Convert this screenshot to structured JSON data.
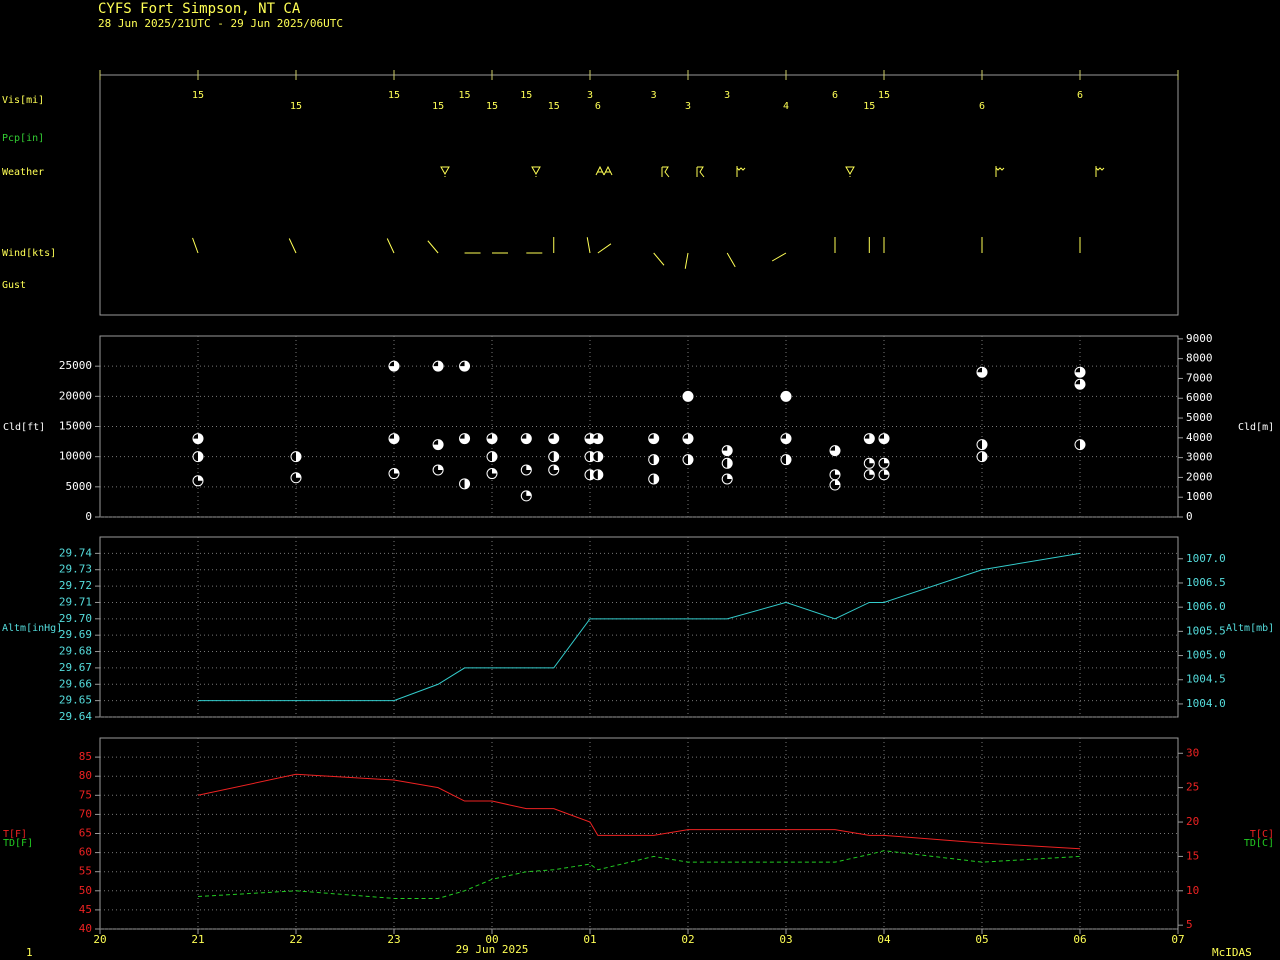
{
  "header": {
    "title": "CYFS  Fort Simpson, NT CA",
    "subtitle": "28 Jun 2025/21UTC - 29 Jun 2025/06UTC",
    "page_number": "1",
    "software": "McIDAS"
  },
  "chart_data": [
    {
      "type": "station",
      "row_labels": [
        "Vis[mi]",
        "Pcp[in]",
        "Weather",
        "Wind[kts]",
        "Gust"
      ],
      "x": [
        1,
        2,
        3,
        3.45,
        3.72,
        4,
        4.35,
        4.63,
        5,
        5.08,
        5.65,
        6,
        6.4,
        7,
        7.5,
        7.85,
        8,
        9,
        10
      ],
      "visibility": [
        15,
        15,
        15,
        15,
        15,
        15,
        15,
        15,
        3,
        6,
        3,
        3,
        3,
        4,
        6,
        15,
        15,
        6,
        6
      ],
      "wind_dir": [
        340,
        335,
        335,
        320,
        90,
        90,
        90,
        360,
        350,
        55,
        140,
        190,
        150,
        240,
        360,
        360,
        360,
        360,
        360
      ],
      "color": "#ffff55"
    },
    {
      "type": "scatter",
      "ylabel": "Cld[ft]",
      "y2label": "Cld[m]",
      "x": [
        1,
        1,
        1,
        2,
        2,
        3,
        3,
        3,
        3.45,
        3.45,
        3.45,
        3.72,
        3.72,
        3.72,
        4,
        4,
        4,
        4.35,
        4.35,
        4.35,
        4.63,
        4.63,
        4.63,
        5,
        5,
        5,
        5.08,
        5.08,
        5.08,
        5.65,
        5.65,
        5.65,
        6,
        6,
        6,
        6.4,
        6.4,
        6.4,
        7,
        7,
        7,
        7.5,
        7.5,
        7.5,
        7.85,
        7.85,
        7.85,
        8,
        8,
        8,
        9,
        9,
        9,
        10,
        10,
        10
      ],
      "height_ft": [
        13000,
        10000,
        6000,
        10000,
        6500,
        25000,
        13000,
        7200,
        25000,
        12000,
        7800,
        25000,
        13000,
        5500,
        13000,
        10000,
        7200,
        13000,
        7800,
        3500,
        13000,
        10000,
        7800,
        13000,
        10000,
        7000,
        13000,
        10000,
        7000,
        13000,
        9500,
        6300,
        20000,
        13000,
        9500,
        11000,
        8900,
        6300,
        20000,
        13000,
        9500,
        11000,
        7000,
        5300,
        13000,
        8900,
        7000,
        13000,
        8900,
        7000,
        24000,
        12000,
        10000,
        24000,
        22000,
        12000
      ],
      "cover": [
        0.75,
        0.5,
        0.25,
        0.5,
        0.25,
        0.75,
        0.75,
        0.25,
        0.75,
        0.75,
        0.25,
        0.75,
        0.75,
        0.5,
        0.75,
        0.5,
        0.25,
        0.75,
        0.25,
        0.25,
        0.75,
        0.5,
        0.25,
        0.75,
        0.5,
        0.5,
        0.75,
        0.5,
        0.5,
        0.75,
        0.5,
        0.5,
        1,
        0.75,
        0.5,
        0.75,
        0.5,
        0.25,
        1,
        0.75,
        0.5,
        0.75,
        0.25,
        0.25,
        0.75,
        0.25,
        0.25,
        0.75,
        0.25,
        0.25,
        0.75,
        0.5,
        0.5,
        0.75,
        0.75,
        0.5
      ],
      "ylim": [
        0,
        30000
      ],
      "yticks": [
        0,
        5000,
        10000,
        15000,
        20000,
        25000
      ],
      "y2lim": [
        0,
        9144
      ],
      "y2ticks": [
        0,
        1000,
        2000,
        3000,
        4000,
        5000,
        6000,
        7000,
        8000,
        9000
      ],
      "color": "#ffffff",
      "grid": true
    },
    {
      "type": "line",
      "ylabel": "Altm[inHg]",
      "y2label": "Altm[mb]",
      "x": [
        1,
        2,
        3,
        3.45,
        3.72,
        4,
        4.35,
        4.63,
        5,
        5.08,
        5.65,
        6,
        6.4,
        7,
        7.5,
        7.85,
        8,
        9,
        10
      ],
      "series": [
        {
          "color": "#33cccc",
          "values": [
            29.65,
            29.65,
            29.65,
            29.66,
            29.67,
            29.67,
            29.67,
            29.67,
            29.7,
            29.7,
            29.7,
            29.7,
            29.7,
            29.71,
            29.7,
            29.71,
            29.71,
            29.73,
            29.74
          ]
        }
      ],
      "ylim": [
        29.64,
        29.75
      ],
      "yticks": [
        29.64,
        29.65,
        29.66,
        29.67,
        29.68,
        29.69,
        {
          "value": 29.7,
          "label": "29.70"
        },
        29.71,
        29.72,
        29.73,
        29.74
      ],
      "y2lim": [
        1003.73,
        1007.45
      ],
      "y2ticks": [
        {
          "value": 1004,
          "label": "1004.0"
        },
        1004.5,
        {
          "value": 1005,
          "label": "1005.0"
        },
        1005.5,
        {
          "value": 1006,
          "label": "1006.0"
        },
        1006.5,
        {
          "value": 1007,
          "label": "1007.0"
        }
      ],
      "color": "#55dddd",
      "grid": true
    },
    {
      "type": "line",
      "ylabels": [
        "T[F]",
        "TD[F]"
      ],
      "y2labels": [
        "T[C]",
        "TD[C]"
      ],
      "x": [
        1,
        2,
        3,
        3.45,
        3.72,
        4,
        4.35,
        4.63,
        5,
        5.08,
        5.65,
        6,
        6.4,
        7,
        7.5,
        7.85,
        8,
        9,
        10
      ],
      "series": [
        {
          "color": "#ee2222",
          "dashed": false,
          "values": [
            75,
            80.5,
            79,
            77,
            73.5,
            73.5,
            71.5,
            71.5,
            68,
            64.5,
            64.5,
            66,
            66,
            66,
            66,
            64.5,
            64.5,
            62.5,
            61
          ]
        },
        {
          "color": "#22cc22",
          "dashed": true,
          "values": [
            48.5,
            50,
            48,
            48,
            50,
            53,
            55,
            55.5,
            57,
            55.5,
            59,
            57.5,
            57.5,
            57.5,
            57.5,
            59.5,
            60.5,
            57.5,
            59
          ]
        }
      ],
      "ylim": [
        40,
        90
      ],
      "yticks": [
        40,
        45,
        50,
        55,
        60,
        65,
        70,
        75,
        80,
        85
      ],
      "y2lim": [
        4.444,
        32.222
      ],
      "y2ticks": [
        5,
        10,
        15,
        20,
        25,
        30
      ],
      "xlim": [
        0,
        11
      ],
      "xticks": [
        {
          "value": 0,
          "label": "20"
        },
        {
          "value": 1,
          "label": "21"
        },
        {
          "value": 2,
          "label": "22"
        },
        {
          "value": 3,
          "label": "23"
        },
        {
          "value": 4,
          "label": "00"
        },
        {
          "value": 5,
          "label": "01"
        },
        {
          "value": 6,
          "label": "02"
        },
        {
          "value": 7,
          "label": "03"
        },
        {
          "value": 8,
          "label": "04"
        },
        {
          "value": 9,
          "label": "05"
        },
        {
          "value": 10,
          "label": "06"
        },
        {
          "value": 11,
          "label": "07"
        }
      ],
      "xlabel": "29 Jun 2025",
      "color": "#ee2222",
      "grid": true
    }
  ]
}
